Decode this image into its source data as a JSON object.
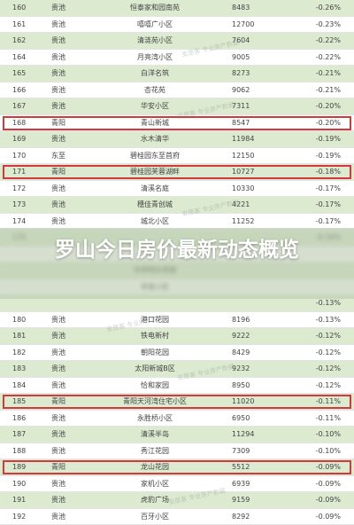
{
  "rows": [
    {
      "rank": "160",
      "district": "贵池",
      "name": "恒泰家和园南苑",
      "price": "8483",
      "change": "-0.26%"
    },
    {
      "rank": "161",
      "district": "贵池",
      "name": "嘻嘻广小区",
      "price": "12700",
      "change": "-0.23%"
    },
    {
      "rank": "162",
      "district": "贵池",
      "name": "清涟苑小区",
      "price": "7604",
      "change": "-0.22%"
    },
    {
      "rank": "164",
      "district": "贵池",
      "name": "月亮湾小区",
      "price": "9005",
      "change": "-0.22%"
    },
    {
      "rank": "165",
      "district": "贵池",
      "name": "白洋名筑",
      "price": "8273",
      "change": "-0.21%"
    },
    {
      "rank": "166",
      "district": "贵池",
      "name": "杏花苑",
      "price": "9062",
      "change": "-0.21%"
    },
    {
      "rank": "167",
      "district": "贵池",
      "name": "华安小区",
      "price": "7311",
      "change": "-0.20%"
    },
    {
      "rank": "168",
      "district": "青阳",
      "name": "青山新城",
      "price": "8547",
      "change": "-0.20%"
    },
    {
      "rank": "169",
      "district": "贵池",
      "name": "水木清华",
      "price": "11984",
      "change": "-0.19%"
    },
    {
      "rank": "170",
      "district": "东至",
      "name": "碧桂园东至首府",
      "price": "12150",
      "change": "-0.19%"
    },
    {
      "rank": "171",
      "district": "青阳",
      "name": "碧桂园芙蓉湖畔",
      "price": "10727",
      "change": "-0.18%"
    },
    {
      "rank": "172",
      "district": "贵池",
      "name": "清溪名庭",
      "price": "10330",
      "change": "-0.17%"
    },
    {
      "rank": "173",
      "district": "贵池",
      "name": "穗佳青创城",
      "price": "4221",
      "change": "-0.17%"
    },
    {
      "rank": "174",
      "district": "贵池",
      "name": "城北小区",
      "price": "11252",
      "change": "-0.17%"
    },
    {
      "rank": "175",
      "district": "",
      "name": "",
      "price": "",
      "change": "-0.16%"
    },
    {
      "rank": "",
      "district": "",
      "name": "",
      "price": "",
      "change": ""
    },
    {
      "rank": "",
      "district": "",
      "name": "华邦阳光花园",
      "price": "",
      "change": ""
    },
    {
      "rank": "",
      "district": "",
      "name": "帝景小区",
      "price": "",
      "change": ""
    },
    {
      "rank": "",
      "district": "",
      "name": "",
      "price": "",
      "change": "-0.13%"
    },
    {
      "rank": "180",
      "district": "贵池",
      "name": "港口花园",
      "price": "8196",
      "change": "-0.13%"
    },
    {
      "rank": "181",
      "district": "贵池",
      "name": "铁电新村",
      "price": "9222",
      "change": "-0.12%"
    },
    {
      "rank": "182",
      "district": "贵池",
      "name": "朝阳花园",
      "price": "8429",
      "change": "-0.12%"
    },
    {
      "rank": "183",
      "district": "贵池",
      "name": "太阳新城B区",
      "price": "9232",
      "change": "-0.12%"
    },
    {
      "rank": "184",
      "district": "贵池",
      "name": "恰和家园",
      "price": "8950",
      "change": "-0.12%"
    },
    {
      "rank": "185",
      "district": "青阳",
      "name": "青阳天河湾住宅小区",
      "price": "11020",
      "change": "-0.11%"
    },
    {
      "rank": "186",
      "district": "贵池",
      "name": "永胜桥小区",
      "price": "6950",
      "change": "-0.11%"
    },
    {
      "rank": "187",
      "district": "贵池",
      "name": "清溪半岛",
      "price": "11294",
      "change": "-0.10%"
    },
    {
      "rank": "188",
      "district": "贵池",
      "name": "秀江花园",
      "price": "7309",
      "change": "-0.10%"
    },
    {
      "rank": "189",
      "district": "青阳",
      "name": "龙山花园",
      "price": "5512",
      "change": "-0.09%"
    },
    {
      "rank": "190",
      "district": "贵池",
      "name": "家机小区",
      "price": "6939",
      "change": "-0.09%"
    },
    {
      "rank": "191",
      "district": "贵池",
      "name": "虎豹广场",
      "price": "9159",
      "change": "-0.09%"
    },
    {
      "rank": "192",
      "district": "贵池",
      "name": "百牙小区",
      "price": "8292",
      "change": "-0.09%"
    }
  ],
  "banner_title": "罗山今日房价最新动态概览",
  "watermark": "安居客 专业房产数据",
  "accent_highlight": "#d0393d",
  "alt_row_color": "#dcead0"
}
